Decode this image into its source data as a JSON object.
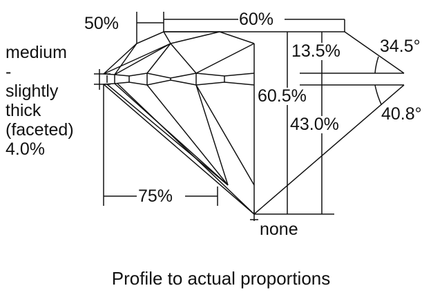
{
  "labels": {
    "table_span": "50%",
    "table_size": "60%",
    "crown_height": "13.5%",
    "crown_angle": "34.5°",
    "total_depth": "60.5%",
    "pavilion_depth": "43.0%",
    "pavilion_angle": "40.8°",
    "lower_half": "75%",
    "culet": "none",
    "girdle": [
      "medium",
      "-",
      "slightly",
      "thick",
      "(faceted)",
      "4.0%"
    ]
  },
  "caption": "Profile to actual proportions",
  "colors": {
    "line": "#111111",
    "background": "#ffffff"
  }
}
